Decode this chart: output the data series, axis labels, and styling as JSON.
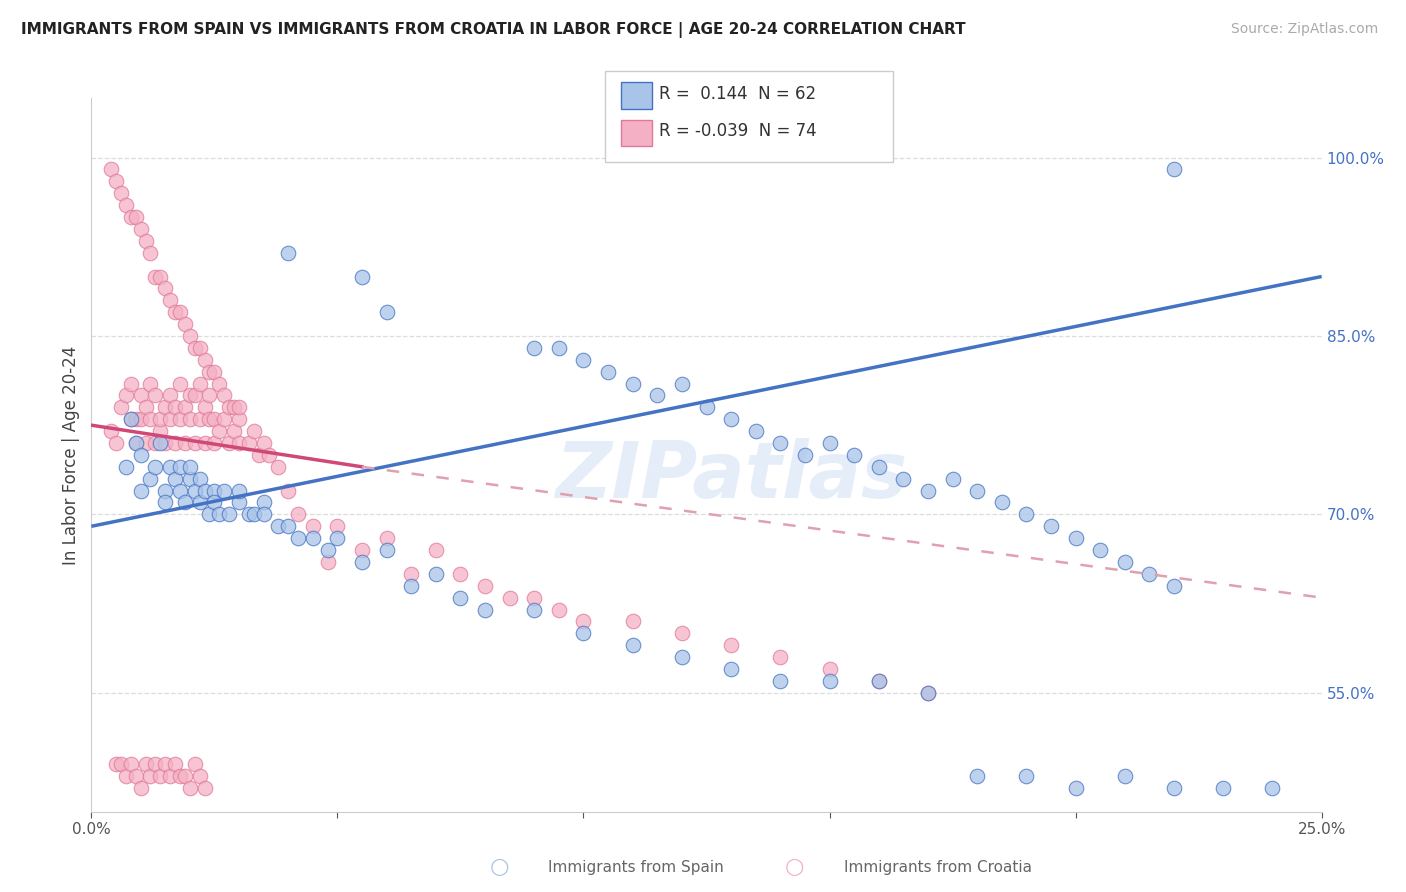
{
  "title": "IMMIGRANTS FROM SPAIN VS IMMIGRANTS FROM CROATIA IN LABOR FORCE | AGE 20-24 CORRELATION CHART",
  "source": "Source: ZipAtlas.com",
  "ylabel": "In Labor Force | Age 20-24",
  "xlim": [
    0.0,
    0.25
  ],
  "ylim": [
    0.45,
    1.05
  ],
  "xticks": [
    0.0,
    0.05,
    0.1,
    0.15,
    0.2,
    0.25
  ],
  "xticklabels": [
    "0.0%",
    "",
    "",
    "",
    "",
    "25.0%"
  ],
  "yticks": [
    0.55,
    0.7,
    0.85,
    1.0
  ],
  "yticklabels": [
    "55.0%",
    "70.0%",
    "85.0%",
    "100.0%"
  ],
  "legend_r_spain": "0.144",
  "legend_n_spain": "62",
  "legend_r_croatia": "-0.039",
  "legend_n_croatia": "74",
  "color_spain": "#a8c4e8",
  "color_croatia": "#f4b0c4",
  "line_color_spain": "#4472c4",
  "line_color_croatia_solid": "#d04878",
  "line_color_croatia_dashed": "#e0a0b0",
  "watermark": "ZIPatlas",
  "grid_color": "#dddddd",
  "spain_x": [
    0.007,
    0.008,
    0.009,
    0.01,
    0.01,
    0.012,
    0.013,
    0.014,
    0.015,
    0.015,
    0.016,
    0.017,
    0.018,
    0.018,
    0.019,
    0.02,
    0.02,
    0.021,
    0.022,
    0.022,
    0.023,
    0.024,
    0.025,
    0.025,
    0.026,
    0.027,
    0.028,
    0.03,
    0.03,
    0.032,
    0.033,
    0.035,
    0.035,
    0.038,
    0.04,
    0.042,
    0.045,
    0.048,
    0.05,
    0.055,
    0.06,
    0.065,
    0.07,
    0.075,
    0.08,
    0.09,
    0.1,
    0.11,
    0.12,
    0.13,
    0.14,
    0.15,
    0.16,
    0.17,
    0.18,
    0.19,
    0.2,
    0.21,
    0.22,
    0.23,
    0.24,
    0.22
  ],
  "spain_y": [
    0.74,
    0.78,
    0.76,
    0.72,
    0.75,
    0.73,
    0.74,
    0.76,
    0.72,
    0.71,
    0.74,
    0.73,
    0.74,
    0.72,
    0.71,
    0.73,
    0.74,
    0.72,
    0.73,
    0.71,
    0.72,
    0.7,
    0.72,
    0.71,
    0.7,
    0.72,
    0.7,
    0.71,
    0.72,
    0.7,
    0.7,
    0.71,
    0.7,
    0.69,
    0.69,
    0.68,
    0.68,
    0.67,
    0.68,
    0.66,
    0.67,
    0.64,
    0.65,
    0.63,
    0.62,
    0.62,
    0.6,
    0.59,
    0.58,
    0.57,
    0.56,
    0.56,
    0.56,
    0.55,
    0.48,
    0.48,
    0.47,
    0.48,
    0.47,
    0.47,
    0.47,
    0.99
  ],
  "spain_x2": [
    0.04,
    0.055,
    0.06,
    0.09,
    0.095,
    0.1,
    0.105,
    0.11,
    0.115,
    0.12,
    0.125,
    0.13,
    0.135,
    0.14,
    0.145,
    0.15,
    0.155,
    0.16,
    0.165,
    0.17,
    0.175,
    0.18,
    0.185,
    0.19,
    0.195,
    0.2,
    0.205,
    0.21,
    0.215,
    0.22
  ],
  "spain_y2": [
    0.92,
    0.9,
    0.87,
    0.84,
    0.84,
    0.83,
    0.82,
    0.81,
    0.8,
    0.81,
    0.79,
    0.78,
    0.77,
    0.76,
    0.75,
    0.76,
    0.75,
    0.74,
    0.73,
    0.72,
    0.73,
    0.72,
    0.71,
    0.7,
    0.69,
    0.68,
    0.67,
    0.66,
    0.65,
    0.64
  ],
  "croatia_x": [
    0.004,
    0.005,
    0.006,
    0.007,
    0.008,
    0.008,
    0.009,
    0.009,
    0.01,
    0.01,
    0.011,
    0.011,
    0.012,
    0.012,
    0.013,
    0.013,
    0.014,
    0.014,
    0.015,
    0.015,
    0.016,
    0.016,
    0.017,
    0.017,
    0.018,
    0.018,
    0.019,
    0.019,
    0.02,
    0.02,
    0.021,
    0.021,
    0.022,
    0.022,
    0.023,
    0.023,
    0.024,
    0.024,
    0.025,
    0.025,
    0.026,
    0.027,
    0.028,
    0.029,
    0.03,
    0.03,
    0.032,
    0.033,
    0.034,
    0.035,
    0.036,
    0.038,
    0.04,
    0.042,
    0.045,
    0.048,
    0.05,
    0.055,
    0.06,
    0.065,
    0.07,
    0.075,
    0.08,
    0.085,
    0.09,
    0.095,
    0.1,
    0.11,
    0.12,
    0.13,
    0.14,
    0.15,
    0.16,
    0.17
  ],
  "croatia_y": [
    0.77,
    0.76,
    0.79,
    0.8,
    0.78,
    0.81,
    0.78,
    0.76,
    0.8,
    0.78,
    0.76,
    0.79,
    0.78,
    0.81,
    0.76,
    0.8,
    0.77,
    0.78,
    0.76,
    0.79,
    0.78,
    0.8,
    0.76,
    0.79,
    0.78,
    0.81,
    0.76,
    0.79,
    0.78,
    0.8,
    0.76,
    0.8,
    0.78,
    0.81,
    0.76,
    0.79,
    0.78,
    0.8,
    0.76,
    0.78,
    0.77,
    0.78,
    0.76,
    0.77,
    0.76,
    0.78,
    0.76,
    0.77,
    0.75,
    0.76,
    0.75,
    0.74,
    0.72,
    0.7,
    0.69,
    0.66,
    0.69,
    0.67,
    0.68,
    0.65,
    0.67,
    0.65,
    0.64,
    0.63,
    0.63,
    0.62,
    0.61,
    0.61,
    0.6,
    0.59,
    0.58,
    0.57,
    0.56,
    0.55
  ],
  "croatia_x2": [
    0.004,
    0.005,
    0.006,
    0.007,
    0.008,
    0.009,
    0.01,
    0.011,
    0.012,
    0.013,
    0.014,
    0.015,
    0.016,
    0.017,
    0.018,
    0.019,
    0.02,
    0.021,
    0.022,
    0.023,
    0.024,
    0.025,
    0.026,
    0.027,
    0.028,
    0.029,
    0.03
  ],
  "croatia_y2": [
    0.99,
    0.98,
    0.97,
    0.96,
    0.95,
    0.95,
    0.94,
    0.93,
    0.92,
    0.9,
    0.9,
    0.89,
    0.88,
    0.87,
    0.87,
    0.86,
    0.85,
    0.84,
    0.84,
    0.83,
    0.82,
    0.82,
    0.81,
    0.8,
    0.79,
    0.79,
    0.79
  ],
  "croatia_x3": [
    0.005,
    0.006,
    0.007,
    0.008,
    0.009,
    0.01,
    0.011,
    0.012,
    0.013,
    0.014,
    0.015,
    0.016,
    0.017,
    0.018,
    0.019,
    0.02,
    0.021,
    0.022,
    0.023
  ],
  "croatia_y3": [
    0.49,
    0.49,
    0.48,
    0.49,
    0.48,
    0.47,
    0.49,
    0.48,
    0.49,
    0.48,
    0.49,
    0.48,
    0.49,
    0.48,
    0.48,
    0.47,
    0.49,
    0.48,
    0.47
  ],
  "trend_spain_x0": 0.0,
  "trend_spain_y0": 0.69,
  "trend_spain_x1": 0.25,
  "trend_spain_y1": 0.9,
  "trend_croatia_solid_x0": 0.0,
  "trend_croatia_solid_y0": 0.775,
  "trend_croatia_solid_x1": 0.055,
  "trend_croatia_solid_y1": 0.74,
  "trend_croatia_dashed_x0": 0.055,
  "trend_croatia_dashed_y0": 0.74,
  "trend_croatia_dashed_x1": 0.25,
  "trend_croatia_dashed_y1": 0.63
}
